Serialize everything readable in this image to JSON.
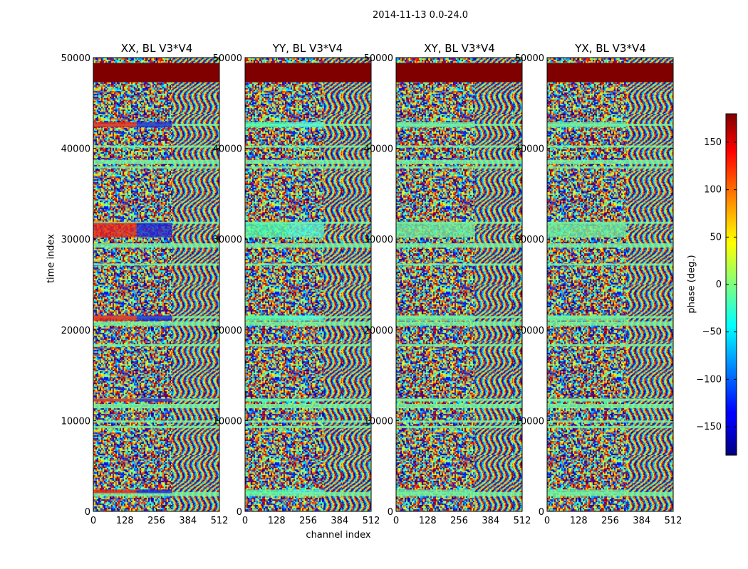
{
  "chart_data": {
    "type": "heatmap",
    "title": "2014-11-13 0.0-24.0",
    "xlabel": "channel index",
    "ylabel": "time index",
    "xlim": [
      0,
      512
    ],
    "ylim": [
      0,
      50000
    ],
    "xticks": [
      "0",
      "128",
      "256",
      "384",
      "512"
    ],
    "xtick_values": [
      0,
      128,
      256,
      384,
      512
    ],
    "yticks": [
      "0",
      "10000",
      "20000",
      "30000",
      "40000",
      "50000"
    ],
    "ytick_values": [
      0,
      10000,
      20000,
      30000,
      40000,
      50000
    ],
    "panels": [
      {
        "title": "XX, BL V3*V4",
        "anomaly_color": "#e8231a",
        "anomaly_alt": "#1f2bd6"
      },
      {
        "title": "YY, BL V3*V4",
        "anomaly_color": "#4dffb0",
        "anomaly_alt": "#56f7d2"
      },
      {
        "title": "XY, BL V3*V4",
        "anomaly_color": "#6df0a0",
        "anomaly_alt": "#6df0a0"
      },
      {
        "title": "YX, BL V3*V4",
        "anomaly_color": "#6df0a0",
        "anomaly_alt": "#6df0a0"
      }
    ],
    "saturated_band": {
      "y_from": 47300,
      "y_to": 49400,
      "color": "#800000"
    },
    "flag_bands": [
      1900,
      9300,
      9900,
      11600,
      12300,
      18300,
      20700,
      21400,
      27200,
      29300,
      31800,
      37900,
      38500,
      40200,
      42600
    ],
    "colorbar": {
      "label": "phase (deg.)",
      "range": [
        -180,
        180
      ],
      "ticks": [
        "150",
        "100",
        "50",
        "0",
        "−50",
        "−100",
        "−150"
      ],
      "tick_values": [
        150,
        100,
        50,
        0,
        -50,
        -100,
        -150
      ],
      "colormap": "jet"
    }
  }
}
